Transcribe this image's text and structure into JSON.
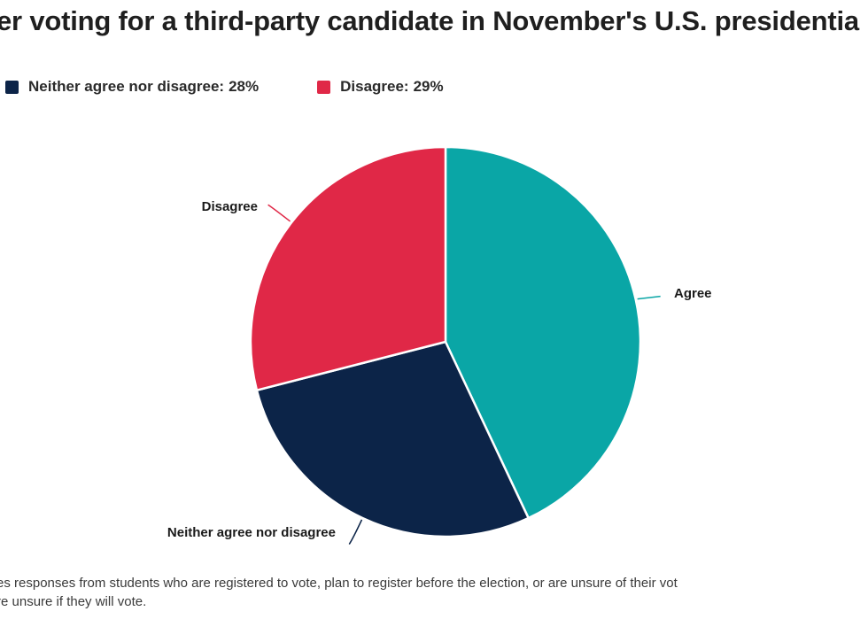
{
  "title": "er voting for a third-party candidate in November's U.S. presidentia",
  "legend": [
    {
      "label": "Neither agree nor disagree:",
      "value": "28%",
      "color": "#0c2448"
    },
    {
      "label": "Disagree:",
      "value": "29%",
      "color": "#e02847"
    }
  ],
  "chart_data": {
    "type": "pie",
    "slices": [
      {
        "label": "Agree",
        "value": 43,
        "color": "#0aa6a6"
      },
      {
        "label": "Neither agree nor disagree",
        "value": 28,
        "color": "#0c2448"
      },
      {
        "label": "Disagree",
        "value": 29,
        "color": "#e02847"
      }
    ],
    "start_angle_deg": 0,
    "direction": "clockwise"
  },
  "footnote": {
    "line1": "es responses from students who are registered to vote, plan to register before the election, or are unsure of their vot",
    "line2": "re unsure if they will vote."
  }
}
